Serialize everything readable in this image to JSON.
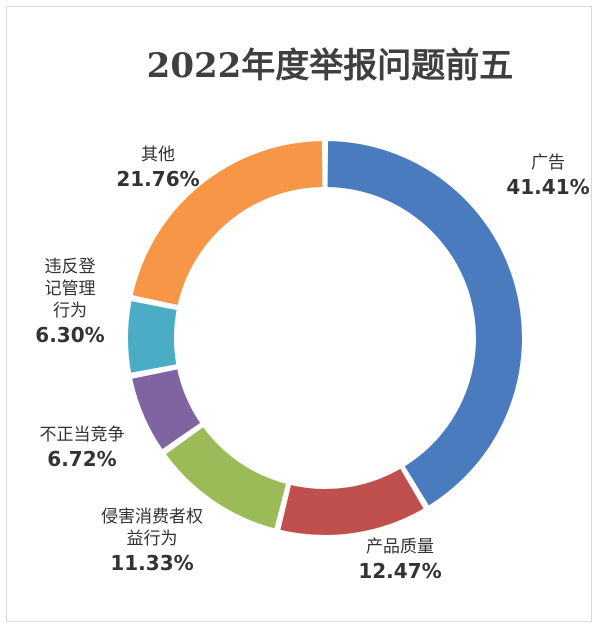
{
  "chart_data": {
    "type": "pie",
    "title": "2022年度举报问题前五",
    "donut": true,
    "legend": "none",
    "slices": [
      {
        "name": "广告",
        "label_lines": [
          "广告"
        ],
        "value": 41.41,
        "percent_label": "41.41%",
        "color": "#4a7bbf"
      },
      {
        "name": "产品质量",
        "label_lines": [
          "产品质量"
        ],
        "value": 12.47,
        "percent_label": "12.47%",
        "color": "#c0504d"
      },
      {
        "name": "侵害消费者权益行为",
        "label_lines": [
          "侵害消费者权",
          "益行为"
        ],
        "value": 11.33,
        "percent_label": "11.33%",
        "color": "#9bbb59"
      },
      {
        "name": "不正当竞争",
        "label_lines": [
          "不正当竞争"
        ],
        "value": 6.72,
        "percent_label": "6.72%",
        "color": "#8064a2"
      },
      {
        "name": "违反登记管理行为",
        "label_lines": [
          "违反登",
          "记管理",
          "行为"
        ],
        "value": 6.3,
        "percent_label": "6.30%",
        "color": "#4bacc6"
      },
      {
        "name": "其他",
        "label_lines": [
          "其他"
        ],
        "value": 21.76,
        "percent_label": "21.76%",
        "color": "#f79646"
      }
    ]
  }
}
